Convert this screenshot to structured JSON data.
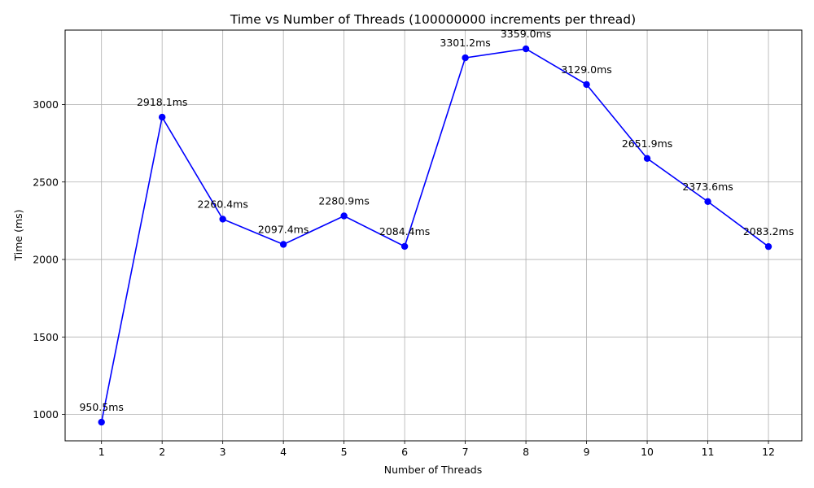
{
  "chart_data": {
    "type": "line",
    "title": "Time vs Number of Threads (100000000 increments per thread)",
    "xlabel": "Number of Threads",
    "ylabel": "Time (ms)",
    "x": [
      1,
      2,
      3,
      4,
      5,
      6,
      7,
      8,
      9,
      10,
      11,
      12
    ],
    "x_tick_labels": [
      "1",
      "2",
      "3",
      "4",
      "5",
      "6",
      "7",
      "8",
      "9",
      "10",
      "11",
      "12"
    ],
    "y_ticks": [
      1000,
      1500,
      2000,
      2500,
      3000
    ],
    "y_tick_labels": [
      "1000",
      "1500",
      "2000",
      "2500",
      "3000"
    ],
    "xlim": [
      0.4,
      12.55
    ],
    "ylim": [
      830,
      3480
    ],
    "grid": true,
    "series": [
      {
        "values": [
          950.5,
          2918.1,
          2260.4,
          2097.4,
          2280.9,
          2084.4,
          3301.2,
          3359.0,
          3129.0,
          2651.9,
          2373.6,
          2083.2
        ],
        "labels": [
          "950.5ms",
          "2918.1ms",
          "2260.4ms",
          "2097.4ms",
          "2280.9ms",
          "2084.4ms",
          "3301.2ms",
          "3359.0ms",
          "3129.0ms",
          "2651.9ms",
          "2373.6ms",
          "2083.2ms"
        ],
        "color": "#0000ff"
      }
    ]
  }
}
